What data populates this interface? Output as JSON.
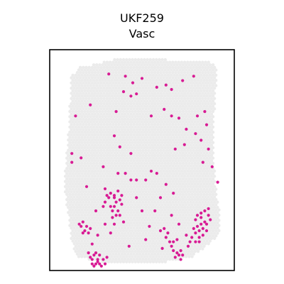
{
  "chart_data": {
    "type": "scatter",
    "title": "UKF259",
    "subtitle": "Vasc",
    "xlabel": "",
    "ylabel": "",
    "grid": false,
    "legend": "none",
    "xlim": [
      0,
      100
    ],
    "ylim": [
      0,
      100
    ],
    "colors": {
      "background_spot": "#ebebeb",
      "highlight_spot": "#d81b94",
      "frame": "#000000"
    },
    "series": [
      {
        "values": [
          [
            32,
            89
          ],
          [
            41,
            88
          ],
          [
            45,
            85
          ],
          [
            50,
            87
          ],
          [
            58,
            83
          ],
          [
            63,
            84
          ],
          [
            66,
            82
          ],
          [
            72,
            86
          ],
          [
            78,
            88
          ],
          [
            40,
            81
          ],
          [
            44,
            79
          ],
          [
            47,
            80
          ],
          [
            36,
            72
          ],
          [
            55,
            70
          ],
          [
            62,
            73
          ],
          [
            66,
            70
          ],
          [
            70,
            69
          ],
          [
            74,
            64
          ],
          [
            80,
            70
          ],
          [
            84,
            72
          ],
          [
            85,
            66
          ],
          [
            79,
            62
          ],
          [
            73,
            57
          ],
          [
            68,
            55
          ],
          [
            35,
            61
          ],
          [
            38,
            56
          ],
          [
            29,
            47
          ],
          [
            37,
            44
          ],
          [
            41,
            44
          ],
          [
            44,
            41
          ],
          [
            30,
            37
          ],
          [
            35,
            34
          ],
          [
            39,
            30
          ],
          [
            47,
            33
          ],
          [
            47,
            41
          ],
          [
            52,
            41
          ],
          [
            55,
            45
          ],
          [
            58,
            44
          ],
          [
            63,
            39
          ],
          [
            67,
            35
          ],
          [
            60,
            33
          ],
          [
            57,
            27
          ],
          [
            50,
            27
          ],
          [
            40,
            22
          ],
          [
            35,
            21
          ],
          [
            33,
            17
          ],
          [
            30,
            21
          ],
          [
            20,
            38
          ],
          [
            17,
            51
          ],
          [
            22,
            75
          ],
          [
            14,
            70
          ],
          [
            82,
            59
          ],
          [
            86,
            55
          ],
          [
            83,
            49
          ],
          [
            88,
            47
          ],
          [
            91,
            40
          ],
          [
            70,
            21
          ],
          [
            66,
            25
          ],
          [
            54,
            20
          ],
          [
            52,
            14
          ],
          [
            43,
            11
          ],
          [
            61,
            10
          ],
          [
            69,
            14
          ],
          [
            44,
            53
          ],
          [
            25,
            27
          ],
          [
            26,
            16
          ],
          [
            23,
            12
          ],
          [
            12,
            53
          ],
          [
            12,
            49
          ]
        ]
      },
      {
        "values": [
          [
            79,
            23
          ],
          [
            80,
            25
          ],
          [
            82,
            26
          ],
          [
            84,
            27
          ],
          [
            86,
            25
          ],
          [
            87,
            23
          ],
          [
            85,
            21
          ],
          [
            83,
            19
          ],
          [
            81,
            18
          ],
          [
            79,
            17
          ],
          [
            77,
            15
          ],
          [
            79,
            13
          ],
          [
            81,
            15
          ],
          [
            83,
            16
          ],
          [
            85,
            18
          ],
          [
            84,
            22
          ],
          [
            82,
            21
          ],
          [
            80,
            20
          ],
          [
            78,
            19
          ],
          [
            86,
            28
          ],
          [
            82,
            24
          ],
          [
            81,
            13
          ],
          [
            76,
            13
          ],
          [
            75,
            11
          ],
          [
            74,
            16
          ]
        ]
      },
      {
        "values": [
          [
            60,
            18
          ],
          [
            62,
            19
          ],
          [
            63,
            15
          ],
          [
            65,
            13
          ],
          [
            66,
            11
          ],
          [
            67,
            9
          ],
          [
            68,
            6
          ],
          [
            70,
            7
          ],
          [
            71,
            9
          ],
          [
            69,
            8
          ],
          [
            64,
            17
          ],
          [
            67,
            13
          ],
          [
            71,
            5
          ],
          [
            72,
            7
          ]
        ]
      },
      {
        "values": [
          [
            21,
            8
          ],
          [
            22,
            6
          ],
          [
            23,
            5
          ],
          [
            24,
            7
          ],
          [
            25,
            8
          ],
          [
            27,
            7
          ],
          [
            26,
            5
          ],
          [
            25,
            3
          ],
          [
            23,
            3
          ],
          [
            27,
            3
          ],
          [
            26,
            4
          ],
          [
            24,
            2
          ],
          [
            29,
            5
          ],
          [
            30,
            3
          ],
          [
            28,
            2
          ],
          [
            31,
            6
          ]
        ]
      },
      {
        "values": [
          [
            29,
            29
          ],
          [
            30,
            31
          ],
          [
            32,
            33
          ],
          [
            33,
            29
          ],
          [
            34,
            27
          ],
          [
            35,
            29
          ],
          [
            36,
            31
          ],
          [
            37,
            27
          ],
          [
            38,
            25
          ],
          [
            36,
            25
          ],
          [
            34,
            24
          ],
          [
            38,
            32
          ],
          [
            33,
            35
          ],
          [
            31,
            34
          ],
          [
            35,
            33
          ],
          [
            39,
            34
          ],
          [
            37,
            36
          ]
        ]
      },
      {
        "values": [
          [
            17,
            20
          ],
          [
            18,
            22
          ],
          [
            19,
            18
          ],
          [
            20,
            20
          ],
          [
            21,
            17
          ],
          [
            22,
            19
          ],
          [
            16,
            21
          ],
          [
            18,
            17
          ]
        ]
      }
    ]
  }
}
